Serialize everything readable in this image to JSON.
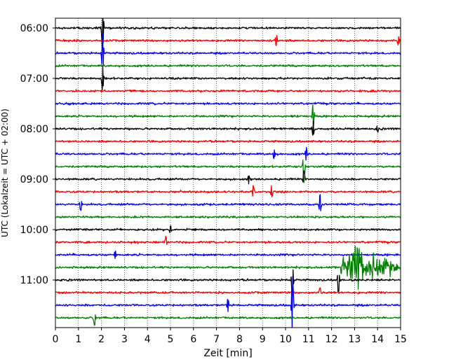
{
  "chart_data": {
    "type": "line",
    "xlabel": "Zeit  [min]",
    "ylabel": "UTC (Lokalzeit = UTC + 02:00)",
    "xlim": [
      0,
      15
    ],
    "xticks": [
      0,
      1,
      2,
      3,
      4,
      5,
      6,
      7,
      8,
      9,
      10,
      11,
      12,
      13,
      14,
      15
    ],
    "xtick_labels": [
      "0",
      "1",
      "2",
      "3",
      "4",
      "5",
      "6",
      "7",
      "8",
      "9",
      "10",
      "11",
      "12",
      "13",
      "14",
      "15"
    ],
    "ytick_labels": [
      "06:00",
      "07:00",
      "08:00",
      "09:00",
      "10:00",
      "11:00"
    ],
    "grid": "vertical dotted at each minute",
    "trace_colors": [
      "#000000",
      "#ff0000",
      "#0000ff",
      "#008000"
    ],
    "traces": [
      {
        "start": "06:00",
        "events": [
          {
            "t": 2.05,
            "amp": 1.9
          }
        ]
      },
      {
        "start": "06:15",
        "events": [
          {
            "t": 9.6,
            "amp": 0.45
          },
          {
            "t": 14.9,
            "amp": 0.4
          }
        ]
      },
      {
        "start": "06:30",
        "events": [
          {
            "t": 2.05,
            "amp": 1.6
          }
        ]
      },
      {
        "start": "06:45",
        "events": []
      },
      {
        "start": "07:00",
        "events": [
          {
            "t": 2.05,
            "amp": 1.0
          }
        ]
      },
      {
        "start": "07:15",
        "events": []
      },
      {
        "start": "07:30",
        "events": []
      },
      {
        "start": "07:45",
        "events": [
          {
            "t": 11.2,
            "amp": 1.0
          }
        ]
      },
      {
        "start": "08:00",
        "events": [
          {
            "t": 11.2,
            "amp": 0.6
          },
          {
            "t": 14.0,
            "amp": 0.3
          }
        ]
      },
      {
        "start": "08:15",
        "events": []
      },
      {
        "start": "08:30",
        "events": [
          {
            "t": 9.5,
            "amp": 0.4
          },
          {
            "t": 10.9,
            "amp": 0.5
          }
        ]
      },
      {
        "start": "08:45",
        "events": [
          {
            "t": 10.8,
            "amp": 1.3
          }
        ]
      },
      {
        "start": "09:00",
        "events": [
          {
            "t": 10.8,
            "amp": 0.7
          },
          {
            "t": 8.4,
            "amp": 0.35
          }
        ]
      },
      {
        "start": "09:15",
        "events": [
          {
            "t": 8.6,
            "amp": 0.45
          },
          {
            "t": 9.4,
            "amp": 0.5
          }
        ]
      },
      {
        "start": "09:30",
        "events": [
          {
            "t": 1.1,
            "amp": 0.5
          },
          {
            "t": 11.5,
            "amp": 0.8
          }
        ]
      },
      {
        "start": "09:45",
        "events": []
      },
      {
        "start": "10:00",
        "events": [
          {
            "t": 5.0,
            "amp": 0.3
          }
        ]
      },
      {
        "start": "10:15",
        "events": [
          {
            "t": 4.8,
            "amp": 0.45
          }
        ]
      },
      {
        "start": "10:30",
        "events": [
          {
            "t": 2.6,
            "amp": 0.3
          }
        ]
      },
      {
        "start": "10:45",
        "events": [
          {
            "t": 12.4,
            "amp": 2.6,
            "quake": true
          }
        ]
      },
      {
        "start": "11:00",
        "events": [
          {
            "t": 10.3,
            "amp": 1.3
          },
          {
            "t": 12.3,
            "amp": 1.0
          }
        ]
      },
      {
        "start": "11:15",
        "events": [
          {
            "t": 11.5,
            "amp": 0.4
          }
        ]
      },
      {
        "start": "11:30",
        "events": [
          {
            "t": 7.5,
            "amp": 0.5
          },
          {
            "t": 10.3,
            "amp": 2.4
          }
        ]
      },
      {
        "start": "11:45",
        "events": [
          {
            "t": 1.7,
            "amp": 0.6
          }
        ]
      }
    ]
  }
}
